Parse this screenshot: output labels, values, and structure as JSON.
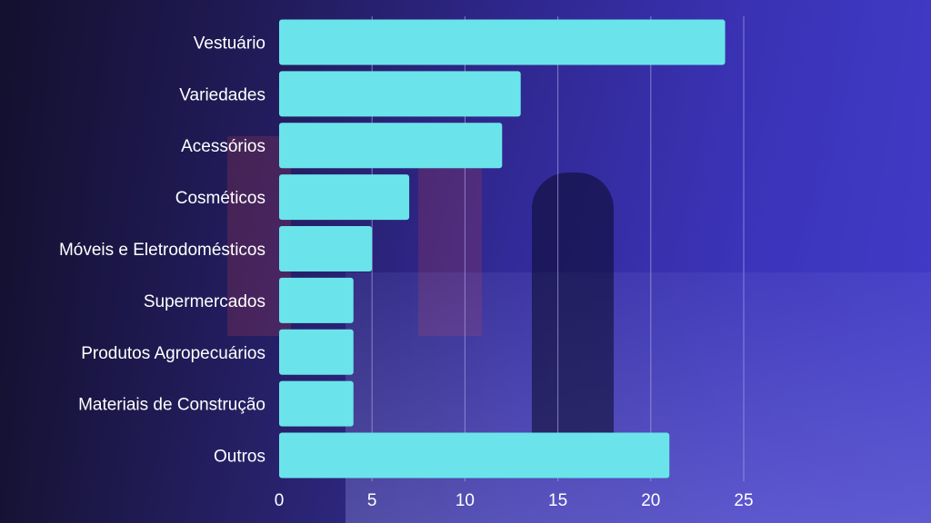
{
  "chart_data": {
    "type": "bar",
    "orientation": "horizontal",
    "title": "",
    "xlabel": "",
    "ylabel": "",
    "categories": [
      "Vestuário",
      "Variedades",
      "Acessórios",
      "Cosméticos",
      "Móveis e Eletrodomésticos",
      "Supermercados",
      "Produtos Agropecuários",
      "Materiais de Construção",
      "Outros"
    ],
    "values": [
      24,
      13,
      12,
      7,
      5,
      4,
      4,
      4,
      21
    ],
    "xlim": [
      0,
      25
    ],
    "xticks": [
      "0",
      "5",
      "10",
      "15",
      "20",
      "25"
    ],
    "grid": "vertical",
    "bar_color": "#6ae4ea",
    "grid_color": "#a9a3e6",
    "label_color": "#ffffff"
  }
}
